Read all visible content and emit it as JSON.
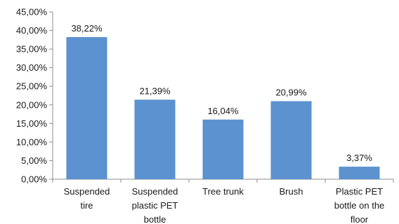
{
  "chart_data": {
    "type": "bar",
    "title": "",
    "xlabel": "",
    "ylabel": "",
    "ylim": [
      0,
      45
    ],
    "y_ticks": [
      "0,00%",
      "5,00%",
      "10,00%",
      "15,00%",
      "20,00%",
      "25,00%",
      "30,00%",
      "35,00%",
      "40,00%",
      "45,00%"
    ],
    "y_tick_values": [
      0,
      5,
      10,
      15,
      20,
      25,
      30,
      35,
      40,
      45
    ],
    "categories": [
      [
        "Suspended",
        "tire"
      ],
      [
        "Suspended",
        "plastic PET",
        "bottle"
      ],
      [
        "Tree trunk"
      ],
      [
        "Brush"
      ],
      [
        "Plastic PET",
        "bottle on the",
        "floor"
      ]
    ],
    "values": [
      38.22,
      21.39,
      16.04,
      20.99,
      3.37
    ],
    "data_labels": [
      "38,22%",
      "21,39%",
      "16,04%",
      "20,99%",
      "3,37%"
    ],
    "grid": false,
    "legend": "none",
    "bar_color": "#5B92CF",
    "axis_color": "#8c8c8c"
  }
}
